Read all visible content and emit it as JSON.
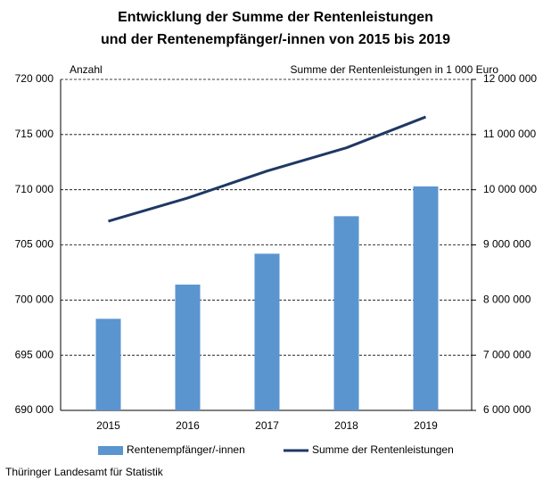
{
  "chart_data": {
    "type": "bar-line",
    "title": [
      "Entwicklung der Summe der Rentenleistungen",
      "und der Rentenempfänger/-innen von 2015 bis 2019"
    ],
    "y_label": "Anzahl",
    "y2_label": "Summe der Rentenleistungen in 1 000 Euro",
    "categories": [
      "2015",
      "2016",
      "2017",
      "2018",
      "2019"
    ],
    "series": [
      {
        "name": "Rentenempfänger/-innen",
        "type": "bar",
        "color": "#5b95d0",
        "values": [
          698300,
          701400,
          704200,
          707600,
          710300
        ]
      },
      {
        "name": "Summe der Rentenleistungen",
        "type": "line",
        "axis": "y2",
        "color": "#1f3864",
        "values": [
          9430000,
          9850000,
          10340000,
          10760000,
          11320000
        ]
      }
    ],
    "ylim": [
      690000,
      720000
    ],
    "yticks": [
      {
        "value": 690000,
        "label": "690 000"
      },
      {
        "value": 695000,
        "label": "695 000"
      },
      {
        "value": 700000,
        "label": "700 000"
      },
      {
        "value": 705000,
        "label": "705 000"
      },
      {
        "value": 710000,
        "label": "710 000"
      },
      {
        "value": 715000,
        "label": "715 000"
      },
      {
        "value": 720000,
        "label": "720 000"
      }
    ],
    "y2lim": [
      6000000,
      12000000
    ],
    "y2ticks": [
      {
        "value": 6000000,
        "label": "6 000 000"
      },
      {
        "value": 7000000,
        "label": "7 000 000"
      },
      {
        "value": 8000000,
        "label": "8 000 000"
      },
      {
        "value": 9000000,
        "label": "9 000 000"
      },
      {
        "value": 10000000,
        "label": "10 000 000"
      },
      {
        "value": 11000000,
        "label": "11 000 000"
      },
      {
        "value": 12000000,
        "label": "12 000 000"
      }
    ],
    "grid": true,
    "source": "Thüringer Landesamt für Statistik"
  }
}
